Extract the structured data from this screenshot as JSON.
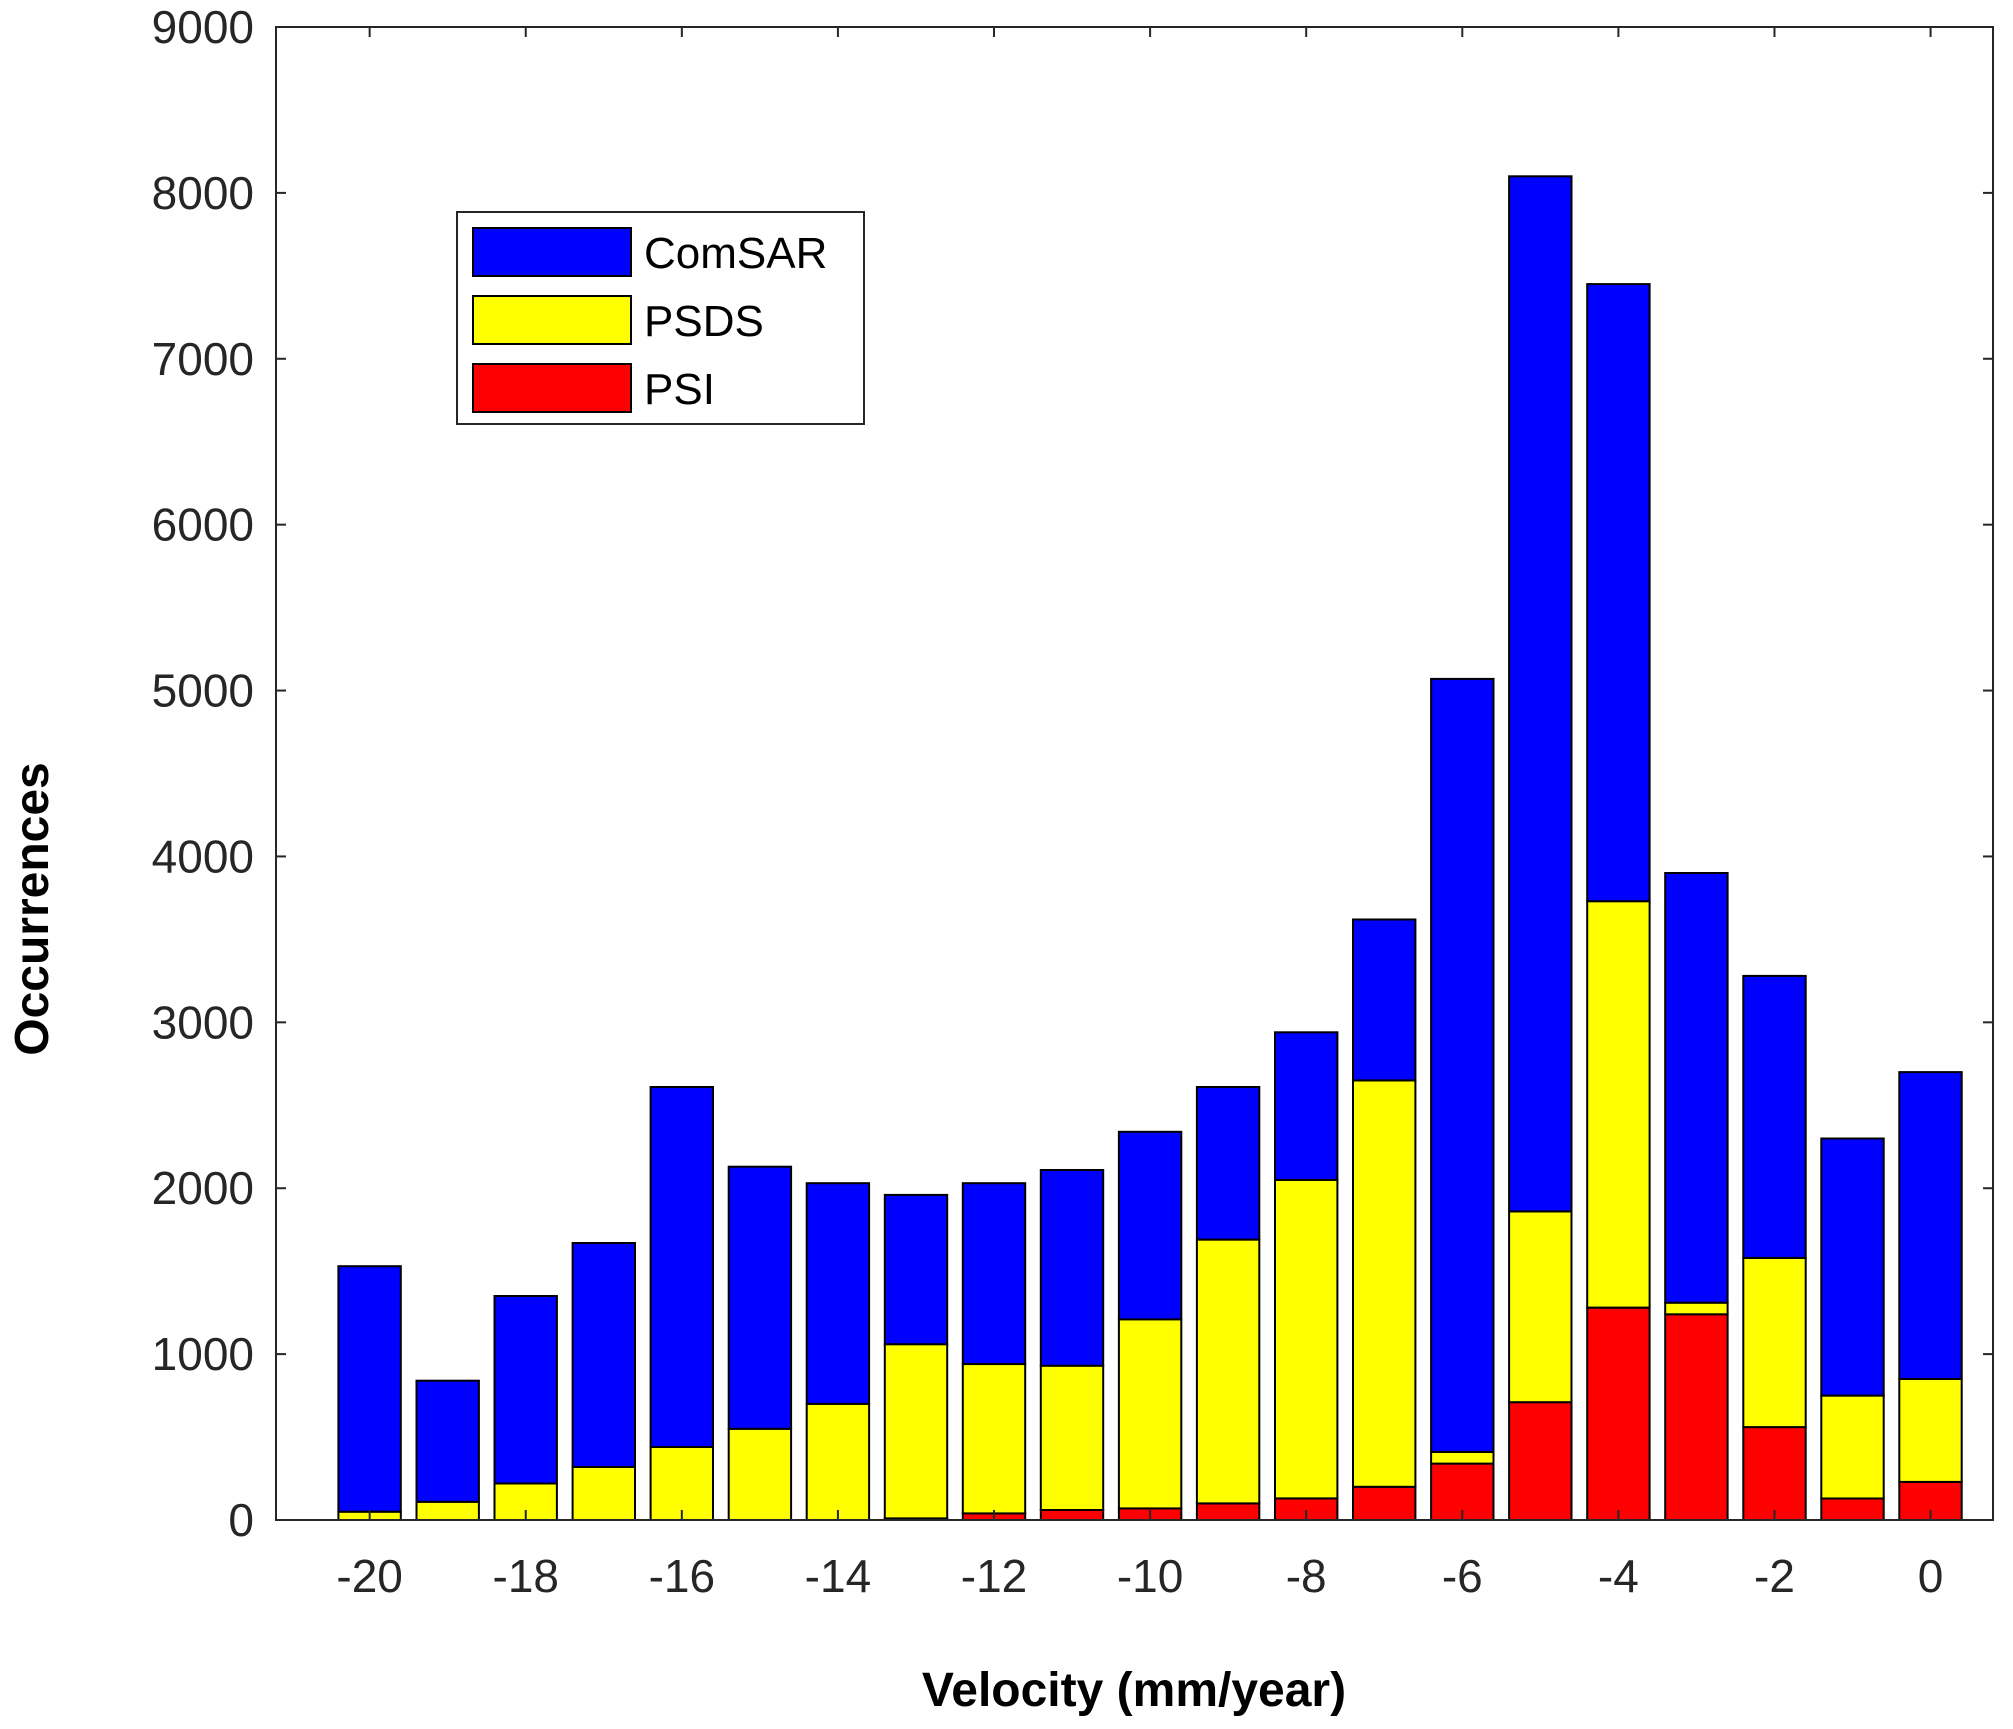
{
  "chart_data": {
    "type": "bar",
    "stacked": true,
    "title": "",
    "xlabel": "Velocity (mm/year)",
    "ylabel": "Occurrences",
    "x": [
      -20,
      -19,
      -18,
      -17,
      -16,
      -15,
      -14,
      -13,
      -12,
      -11,
      -10,
      -9,
      -8,
      -7,
      -6,
      -5,
      -4,
      -3,
      -2,
      -1,
      0
    ],
    "xticks": [
      -20,
      -18,
      -16,
      -14,
      -12,
      -10,
      -8,
      -6,
      -4,
      -2,
      0
    ],
    "xtick_labels": [
      "-20",
      "-18",
      "-16",
      "-14",
      "-12",
      "-10",
      "-8",
      "-6",
      "-4",
      "-2",
      "0"
    ],
    "xlim": [
      -21.2,
      0.8
    ],
    "ylim": [
      0,
      9000
    ],
    "yticks": [
      0,
      1000,
      2000,
      3000,
      4000,
      5000,
      6000,
      7000,
      8000,
      9000
    ],
    "ytick_labels": [
      "0",
      "1000",
      "2000",
      "3000",
      "4000",
      "5000",
      "6000",
      "7000",
      "8000",
      "9000"
    ],
    "grid": false,
    "legend_position": "top-left",
    "series": [
      {
        "name": "PSI",
        "color": "#ff0000",
        "values": [
          0,
          0,
          0,
          0,
          0,
          0,
          0,
          10,
          40,
          60,
          70,
          100,
          130,
          200,
          340,
          710,
          1280,
          1240,
          560,
          130,
          230
        ]
      },
      {
        "name": "PSDS",
        "color": "#ffff00",
        "values": [
          50,
          110,
          220,
          320,
          440,
          550,
          700,
          1050,
          900,
          870,
          1140,
          1590,
          1920,
          2450,
          70,
          1150,
          2450,
          70,
          1020,
          620,
          620
        ]
      },
      {
        "name": "ComSAR",
        "color": "#0000ff",
        "values": [
          1480,
          730,
          1130,
          1350,
          2170,
          1580,
          1330,
          900,
          1090,
          1180,
          1130,
          920,
          890,
          970,
          4660,
          6240,
          3720,
          2590,
          1700,
          1550,
          1850
        ]
      }
    ],
    "legend": [
      {
        "name": "ComSAR",
        "color": "#0000ff"
      },
      {
        "name": "PSDS",
        "color": "#ffff00"
      },
      {
        "name": "PSI",
        "color": "#ff0000"
      }
    ]
  }
}
